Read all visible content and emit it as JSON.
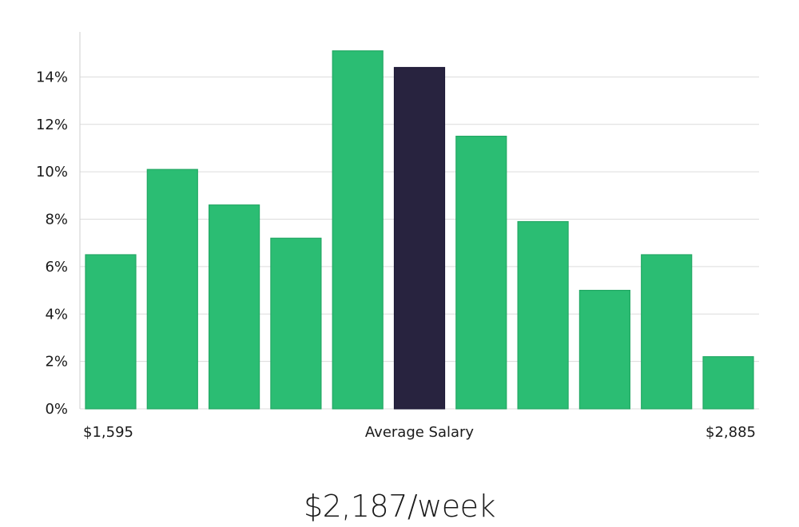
{
  "colors": {
    "bar": "#2bbd73",
    "highlight": "#28233f",
    "grid": "#dcdcdc",
    "axis": "#cfcfcf"
  },
  "chart_data": {
    "type": "bar",
    "y_ticks": [
      "0%",
      "2%",
      "4%",
      "6%",
      "8%",
      "10%",
      "12%",
      "14%"
    ],
    "ylim": [
      0,
      15.9
    ],
    "grid": true,
    "values": [
      6.5,
      10.1,
      8.6,
      7.2,
      15.1,
      14.4,
      11.5,
      7.9,
      5.0,
      6.5,
      2.2
    ],
    "highlight_index": 5,
    "x_min_label": "$1,595",
    "x_center_label": "Average Salary",
    "x_max_label": "$2,885"
  },
  "summary": {
    "average_salary": "$2,187/week"
  }
}
